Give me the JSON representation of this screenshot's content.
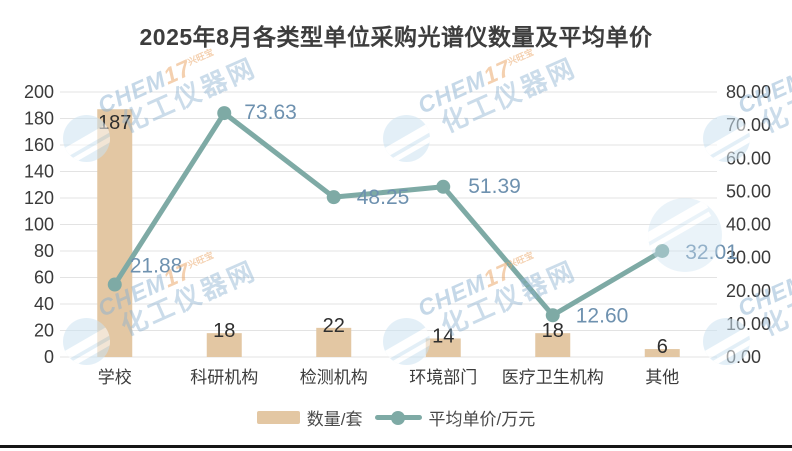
{
  "title": {
    "text": "2025年8月各类型单位采购光谱仪数量及平均单价"
  },
  "chart_data": {
    "type": "bar+line",
    "categories": [
      "学校",
      "科研机构",
      "检测机构",
      "环境部门",
      "医疗卫生机构",
      "其他"
    ],
    "series": [
      {
        "name": "数量/套",
        "type": "bar",
        "axis": "left",
        "values": [
          187,
          18,
          22,
          14,
          18,
          6
        ],
        "labels": [
          "187",
          "18",
          "22",
          "14",
          "18",
          "6"
        ]
      },
      {
        "name": "平均单价/万元",
        "type": "line",
        "axis": "right",
        "values": [
          21.88,
          73.63,
          48.25,
          51.39,
          12.6,
          32.01
        ],
        "labels": [
          "21.88",
          "73.63",
          "48.25",
          "51.39",
          "12.60",
          "32.01"
        ]
      }
    ],
    "left_axis": {
      "min": 0,
      "max": 200,
      "step": 20,
      "tick_labels": [
        "200",
        "180",
        "160",
        "140",
        "120",
        "100",
        "80",
        "60",
        "40",
        "20",
        "0"
      ]
    },
    "right_axis": {
      "min": 0,
      "max": 80,
      "step": 10,
      "tick_labels": [
        "80.00",
        "70.00",
        "60.00",
        "50.00",
        "40.00",
        "30.00",
        "20.00",
        "10.00",
        "0.00"
      ]
    },
    "grid": true,
    "legend_position": "bottom"
  },
  "legend": {
    "items": [
      {
        "label": "数量/套",
        "type": "bar"
      },
      {
        "label": "平均单价/万元",
        "type": "line"
      }
    ]
  },
  "watermark": {
    "brand": "CHEM17",
    "superscript": "兴旺宝",
    "site": "化工仪器网"
  },
  "colors": {
    "bar": "#e3c7a3",
    "line": "#7eaaa5",
    "line_label": "#6e91af",
    "bar_label": "#2f2f2f",
    "axis_label": "#3a3a3a",
    "category_label": "#3c3c3c",
    "gridline": "#e3e3e3",
    "title": "#3d3d3d",
    "background": "#ffffff",
    "footer_strip": "#151515"
  }
}
